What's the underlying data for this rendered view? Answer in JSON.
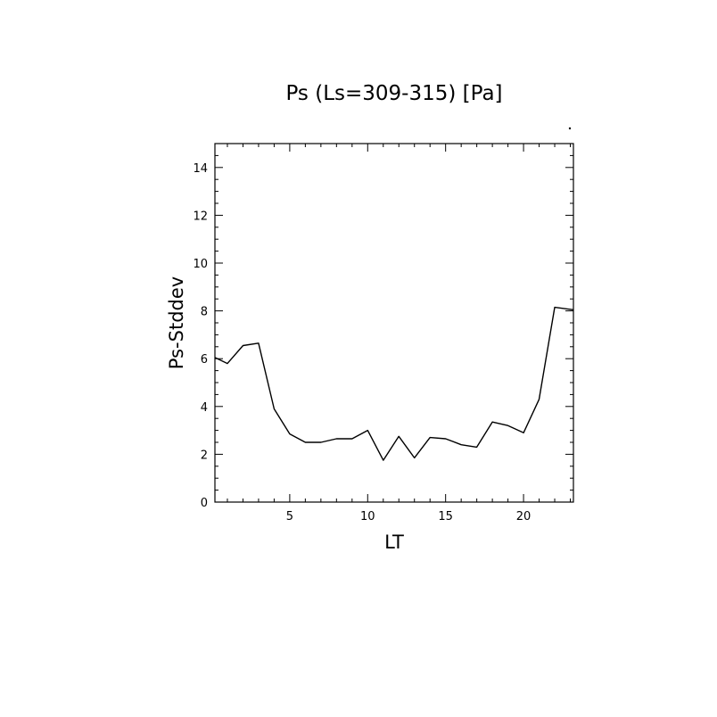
{
  "chart_data": {
    "type": "line",
    "title": "Ps (Ls=309-315) [Pa]",
    "xlabel": "LT",
    "ylabel": "Ps-Stddev",
    "xlim": [
      0.2,
      23.2
    ],
    "ylim": [
      0,
      15
    ],
    "xticks": [
      5,
      10,
      15,
      20
    ],
    "yticks": [
      0,
      2,
      4,
      6,
      8,
      10,
      12,
      14
    ],
    "grid": false,
    "series": [
      {
        "x": [
          0.2,
          1.0,
          2.0,
          3.0,
          4.0,
          5.0,
          6.0,
          7.0,
          8.0,
          9.0,
          10.0,
          11.0,
          12.0,
          13.0,
          14.0,
          15.0,
          16.0,
          17.0,
          18.0,
          19.0,
          20.0,
          21.0,
          22.0,
          23.2
        ],
        "values": [
          6.05,
          5.8,
          6.55,
          6.65,
          3.9,
          2.85,
          2.5,
          2.5,
          2.65,
          2.65,
          3.0,
          1.75,
          2.75,
          1.85,
          2.7,
          2.65,
          2.4,
          2.3,
          3.35,
          3.2,
          2.9,
          4.3,
          8.15,
          8.05
        ]
      }
    ],
    "color": "#000000"
  }
}
